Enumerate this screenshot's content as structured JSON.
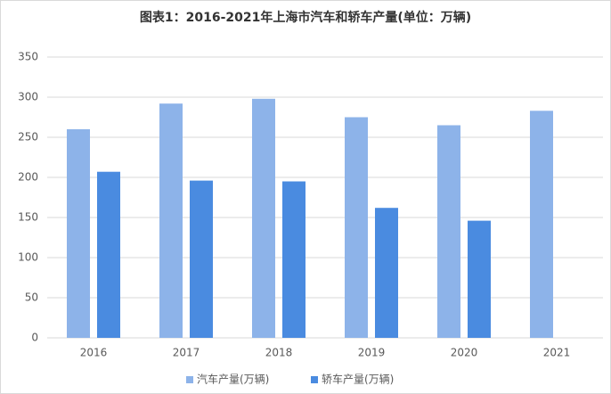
{
  "chart_data": {
    "type": "bar",
    "title": "图表1：2016-2021年上海市汽车和轿车产量(单位：万辆)",
    "categories": [
      "2016",
      "2017",
      "2018",
      "2019",
      "2020",
      "2021"
    ],
    "series": [
      {
        "name": "汽车产量(万辆)",
        "color": "#8db3e9",
        "values": [
          260,
          292,
          298,
          275,
          265,
          283
        ]
      },
      {
        "name": "轿车产量(万辆)",
        "color": "#4a8be0",
        "values": [
          207,
          196,
          195,
          162,
          146,
          null
        ]
      }
    ],
    "ylim": [
      0,
      350
    ],
    "yticks": [
      0,
      50,
      100,
      150,
      200,
      250,
      300,
      350
    ],
    "grid": true,
    "legend": "bottom"
  }
}
